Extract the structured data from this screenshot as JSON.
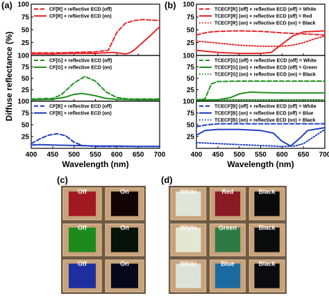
{
  "panels": {
    "a": "(a)",
    "b": "(b)",
    "c": "(c)",
    "d": "(d)"
  },
  "chart_data": [
    {
      "type": "line",
      "panel": "(a)",
      "ylabel": "Diffuse reflectance (%)",
      "xlabel": "Wavelength (nm)",
      "xlim": [
        400,
        700
      ],
      "xticks": [
        "400",
        "450",
        "500",
        "550",
        "600",
        "650",
        "700"
      ],
      "subplots": [
        {
          "ylim": [
            0,
            100
          ],
          "yticks": [
            "100",
            "75",
            "50",
            "25"
          ],
          "legend_position": "top-left",
          "series": [
            {
              "name": "CF[R] + reflective ECD (off)",
              "color": "#e8262b",
              "dash": "dashed",
              "x": [
                400,
                450,
                500,
                550,
                580,
                600,
                620,
                640,
                660,
                680,
                700
              ],
              "y": [
                5,
                5,
                6,
                7,
                10,
                45,
                63,
                68,
                70,
                69,
                68
              ]
            },
            {
              "name": "CF[R] + reflective ECD (on)",
              "color": "#e8262b",
              "dash": "solid",
              "x": [
                400,
                450,
                500,
                550,
                590,
                610,
                620,
                630,
                640,
                660,
                680,
                700
              ],
              "y": [
                3,
                3,
                4,
                4,
                6,
                4,
                3,
                5,
                10,
                25,
                40,
                56
              ]
            }
          ]
        },
        {
          "ylim": [
            0,
            100
          ],
          "yticks": [
            "100",
            "75",
            "50",
            "25"
          ],
          "legend_position": "top-left",
          "series": [
            {
              "name": "CF[G] + reflective ECD (off)",
              "color": "#1e8f1e",
              "dash": "dashed",
              "x": [
                400,
                450,
                470,
                500,
                525,
                550,
                575,
                600,
                625,
                650,
                700
              ],
              "y": [
                5,
                6,
                14,
                40,
                54,
                44,
                20,
                8,
                5,
                5,
                5
              ]
            },
            {
              "name": "CF[G] + reflective ECD (on)",
              "color": "#1e8f1e",
              "dash": "solid",
              "x": [
                400,
                450,
                480,
                500,
                520,
                550,
                575,
                600,
                650,
                700
              ],
              "y": [
                3,
                4,
                9,
                15,
                17,
                12,
                6,
                4,
                3,
                3
              ]
            }
          ]
        },
        {
          "ylim": [
            0,
            100
          ],
          "yticks": [
            "100",
            "75",
            "50",
            "25"
          ],
          "legend_position": "top-left",
          "series": [
            {
              "name": "CF[B] + reflective ECD (off)",
              "color": "#1f3fbf",
              "dash": "dashed",
              "x": [
                400,
                420,
                440,
                460,
                480,
                500,
                520,
                550,
                600,
                650,
                700
              ],
              "y": [
                10,
                20,
                28,
                31,
                27,
                13,
                6,
                4,
                4,
                4,
                4
              ]
            },
            {
              "name": "CF[B] + reflective ECD (on)",
              "color": "#1f3fbf",
              "dash": "solid",
              "x": [
                400,
                420,
                450,
                500,
                550,
                600,
                650,
                700
              ],
              "y": [
                7,
                8,
                7,
                6,
                5,
                5,
                4,
                4
              ]
            }
          ]
        }
      ]
    },
    {
      "type": "line",
      "panel": "(b)",
      "xlabel": "Wavelength (nm)",
      "xlim": [
        400,
        700
      ],
      "xticks": [
        "400",
        "450",
        "500",
        "550",
        "600",
        "650",
        "700"
      ],
      "subplots": [
        {
          "ylim": [
            0,
            100
          ],
          "yticks": [
            "100",
            "75",
            "50",
            "25"
          ],
          "legend_position": "top-left",
          "series": [
            {
              "name": "TCECF[R] (off) + reflective ECD (off) = White",
              "color": "#e8262b",
              "dash": "dashed",
              "x": [
                400,
                425,
                450,
                500,
                550,
                600,
                650,
                700
              ],
              "y": [
                40,
                45,
                47,
                48,
                47,
                44,
                42,
                40
              ]
            },
            {
              "name": "TCECF[R] (on) + reflective ECD (off) = Red",
              "color": "#e8262b",
              "dash": "solid",
              "x": [
                400,
                450,
                500,
                550,
                575,
                600,
                625,
                650,
                700
              ],
              "y": [
                10,
                6,
                4,
                4,
                6,
                22,
                38,
                46,
                48
              ]
            },
            {
              "name": "TCECF[R] (on) + reflective ECD (on) = Black",
              "color": "#e8262b",
              "dash": "dotted",
              "x": [
                400,
                450,
                500,
                550,
                600,
                625,
                650,
                675,
                700
              ],
              "y": [
                28,
                24,
                20,
                18,
                18,
                20,
                25,
                32,
                38
              ]
            }
          ]
        },
        {
          "ylim": [
            0,
            100
          ],
          "yticks": [
            "100",
            "75",
            "50",
            "25"
          ],
          "legend_position": "top-left",
          "series": [
            {
              "name": "TCECF[G] (off) + reflective ECD (off) = White",
              "color": "#1e8f1e",
              "dash": "dashed",
              "x": [
                400,
                420,
                435,
                450,
                500,
                550,
                600,
                650,
                700
              ],
              "y": [
                3,
                5,
                38,
                43,
                44,
                44,
                44,
                44,
                44
              ]
            },
            {
              "name": "TCECF[G] (on) + reflective ECD (off) = Green",
              "color": "#1e8f1e",
              "dash": "solid",
              "x": [
                400,
                450,
                480,
                500,
                525,
                550,
                600,
                650,
                700
              ],
              "y": [
                2,
                3,
                8,
                16,
                20,
                19,
                18,
                18,
                18
              ]
            },
            {
              "name": "TCECF[G] (on) + reflective ECD (on) = Black",
              "color": "#1e8f1e",
              "dash": "dotted",
              "x": [
                400,
                450,
                500,
                550,
                600,
                650,
                700
              ],
              "y": [
                3,
                3,
                3,
                3,
                3,
                3,
                3
              ]
            }
          ]
        },
        {
          "ylim": [
            0,
            100
          ],
          "yticks": [
            "100",
            "75",
            "50",
            "25"
          ],
          "legend_position": "top-left",
          "series": [
            {
              "name": "TCECF[B] (off) + reflective ECD (off) = White",
              "color": "#1f3fbf",
              "dash": "dashed",
              "x": [
                400,
                425,
                450,
                500,
                550,
                600,
                650,
                700
              ],
              "y": [
                46,
                50,
                52,
                52,
                52,
                52,
                52,
                52
              ]
            },
            {
              "name": "TCECF[B] (on) + reflective ECD (off) = Blue",
              "color": "#1f3fbf",
              "dash": "solid",
              "x": [
                400,
                420,
                450,
                500,
                550,
                580,
                600,
                620,
                640,
                660,
                700
              ],
              "y": [
                28,
                38,
                40,
                40,
                38,
                32,
                15,
                5,
                20,
                38,
                44
              ]
            },
            {
              "name": "TCECF[B] (on) + reflective ECD (on) = Black",
              "color": "#1f3fbf",
              "dash": "dotted",
              "x": [
                400,
                450,
                500,
                550,
                600,
                630,
                650,
                675,
                700
              ],
              "y": [
                12,
                10,
                8,
                6,
                4,
                5,
                10,
                25,
                40
              ]
            }
          ]
        }
      ]
    }
  ],
  "photos": {
    "c": {
      "labels": [
        [
          "Off",
          "On"
        ],
        [
          "Off",
          "On"
        ],
        [
          "Off",
          "On"
        ]
      ],
      "colors": [
        [
          "#a01820",
          "#120406"
        ],
        [
          "#1d8a1d",
          "#05130a"
        ],
        [
          "#1e2e9e",
          "#05071a"
        ]
      ]
    },
    "d": {
      "labels": [
        [
          "White",
          "Red",
          "Black"
        ],
        [
          "White",
          "Green",
          "Black"
        ],
        [
          "White",
          "Blue",
          "Black"
        ]
      ],
      "colors": [
        [
          "#dfe4d8",
          "#8a1a24",
          "#0a0a0a"
        ],
        [
          "#e3e8d4",
          "#2e7a46",
          "#0a0c0c"
        ],
        [
          "#dde3d8",
          "#1a6aa0",
          "#0a0b0e"
        ]
      ]
    }
  }
}
